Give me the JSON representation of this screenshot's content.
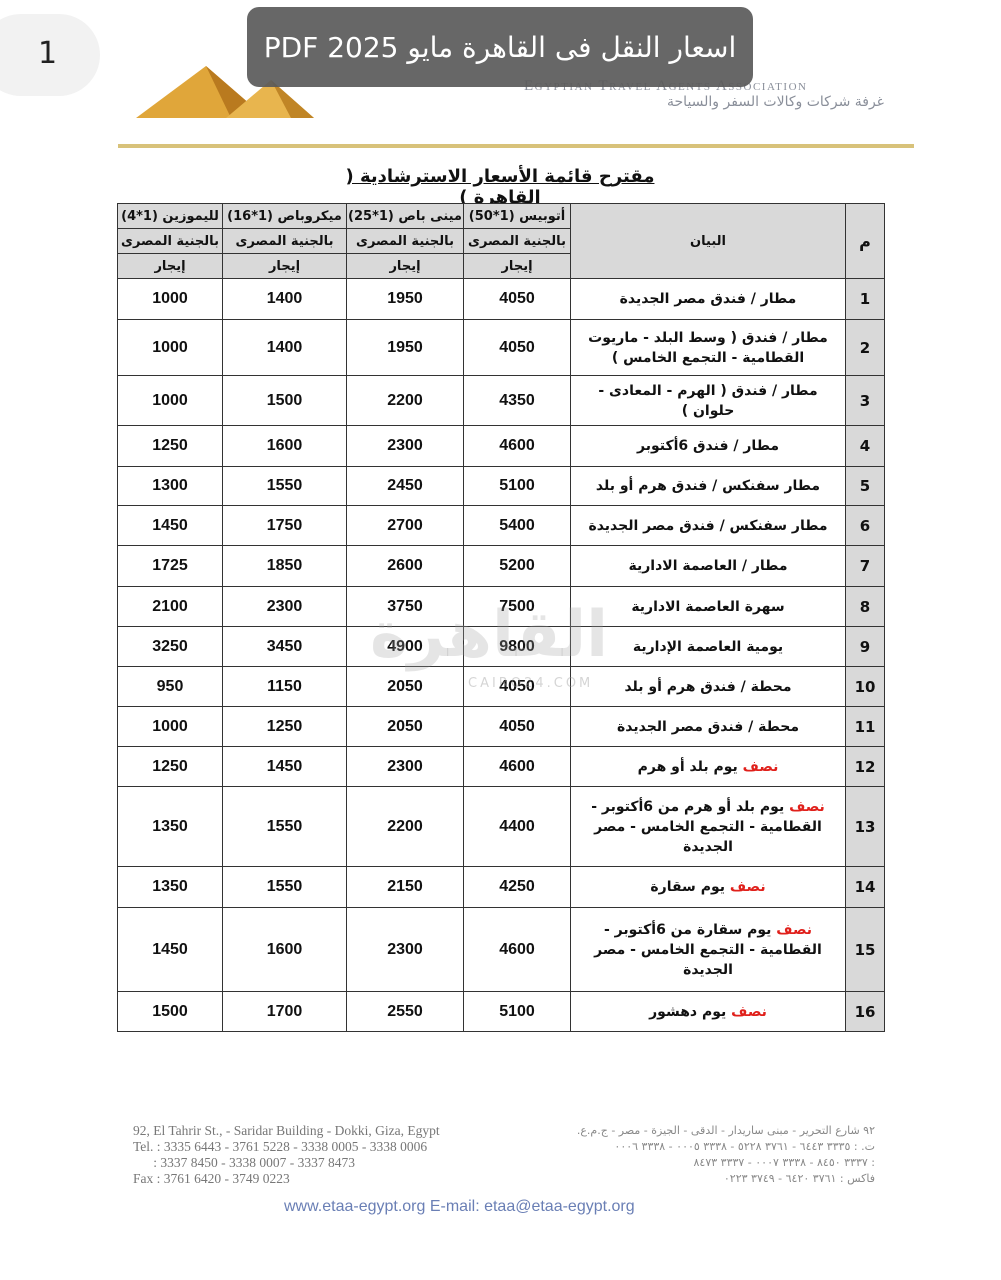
{
  "page_number": "1",
  "banner_title": "اسعار النقل فى القاهرة مايو 2025 PDF",
  "header": {
    "assoc_en": "Egyptian Travel Agents Association",
    "assoc_ar": "غرفة شركات وكالات السفر والسياحة"
  },
  "doc_title": "مقترح قائمة الأسعار الاسترشادية ( القاهرة )",
  "table": {
    "col_num": "م",
    "col_desc": "البيان",
    "vehicles": [
      "أتوبيس (1*50)",
      "مينى باص (1*25)",
      "ميكروباص (1*16)",
      "لليموزين (1*4)"
    ],
    "currency": "بالجنية المصرى",
    "rent": "إيجار",
    "rows": [
      {
        "n": "1",
        "prefix": "",
        "desc": "مطار / فندق مصر الجديدة",
        "v": [
          "4050",
          "1950",
          "1400",
          "1000"
        ]
      },
      {
        "n": "2",
        "prefix": "",
        "desc": "مطار / فندق ( وسط البلد - ماريوت القطامية - التجمع الخامس )",
        "v": [
          "4050",
          "1950",
          "1400",
          "1000"
        ]
      },
      {
        "n": "3",
        "prefix": "",
        "desc": "مطار / فندق ( الهرم - المعادى - حلوان )",
        "v": [
          "4350",
          "2200",
          "1500",
          "1000"
        ]
      },
      {
        "n": "4",
        "prefix": "",
        "desc": "مطار / فندق 6أكتوبر",
        "v": [
          "4600",
          "2300",
          "1600",
          "1250"
        ]
      },
      {
        "n": "5",
        "prefix": "",
        "desc": "مطار سفنكس / فندق هرم أو بلد",
        "v": [
          "5100",
          "2450",
          "1550",
          "1300"
        ]
      },
      {
        "n": "6",
        "prefix": "",
        "desc": "مطار سفنكس / فندق مصر الجديدة",
        "v": [
          "5400",
          "2700",
          "1750",
          "1450"
        ]
      },
      {
        "n": "7",
        "prefix": "",
        "desc": "مطار / العاصمة الادارية",
        "v": [
          "5200",
          "2600",
          "1850",
          "1725"
        ]
      },
      {
        "n": "8",
        "prefix": "",
        "desc": "سهرة العاصمة الادارية",
        "v": [
          "7500",
          "3750",
          "2300",
          "2100"
        ]
      },
      {
        "n": "9",
        "prefix": "",
        "desc": "يومية العاصمة الإدارية",
        "v": [
          "9800",
          "4900",
          "3450",
          "3250"
        ]
      },
      {
        "n": "10",
        "prefix": "",
        "desc": "محطة / فندق هرم أو بلد",
        "v": [
          "4050",
          "2050",
          "1150",
          "950"
        ]
      },
      {
        "n": "11",
        "prefix": "",
        "desc": "محطة / فندق مصر الجديدة",
        "v": [
          "4050",
          "2050",
          "1250",
          "1000"
        ]
      },
      {
        "n": "12",
        "prefix": "نصف",
        "desc": "يوم بلد أو هرم",
        "v": [
          "4600",
          "2300",
          "1450",
          "1250"
        ]
      },
      {
        "n": "13",
        "prefix": "نصف",
        "desc": "يوم بلد أو هرم من 6أكتوبر - القطامية - التجمع الخامس - مصر الجديدة",
        "v": [
          "4400",
          "2200",
          "1550",
          "1350"
        ]
      },
      {
        "n": "14",
        "prefix": "نصف",
        "desc": "يوم سقارة",
        "v": [
          "4250",
          "2150",
          "1550",
          "1350"
        ]
      },
      {
        "n": "15",
        "prefix": "نصف",
        "desc": "يوم سقارة من 6أكتوبر - القطامية - التجمع الخامس - مصر الجديدة",
        "v": [
          "4600",
          "2300",
          "1600",
          "1450"
        ]
      },
      {
        "n": "16",
        "prefix": "نصف",
        "desc": "يوم دهشور",
        "v": [
          "5100",
          "2550",
          "1700",
          "1500"
        ]
      }
    ]
  },
  "watermark": {
    "text": "القاهرة 24",
    "sub": "CAIRO24.COM"
  },
  "footer": {
    "en": [
      "92, El Tahrir St., - Saridar Building - Dokki, Giza, Egypt",
      "Tel. : 3335 6443 - 3761 5228 - 3338 0005 - 3338 0006",
      "      : 3337 8450 - 3338 0007 - 3337 8473",
      "Fax : 3761 6420 - 3749 0223"
    ],
    "ar": [
      "٩٢ شارع التحرير - مبنى ساريدار - الدقى - الجيزة - مصر - ج.م.ع.",
      "ت. : ٣٣٣٥ ٦٤٤٣ - ٣٧٦١ ٥٢٢٨ - ٣٣٣٨ ٠٠٠٥ - ٣٣٣٨ ٠٠٠٦",
      "   : ٣٣٣٧ ٨٤٥٠ - ٣٣٣٨ ٠٠٠٧ - ٣٣٣٧ ٨٤٧٣",
      "فاكس : ٣٧٦١ ٦٤٢٠ - ٣٧٤٩ ٠٢٢٣"
    ],
    "web": "www.etaa-egypt.org  E-mail: etaa@etaa-egypt.org"
  }
}
